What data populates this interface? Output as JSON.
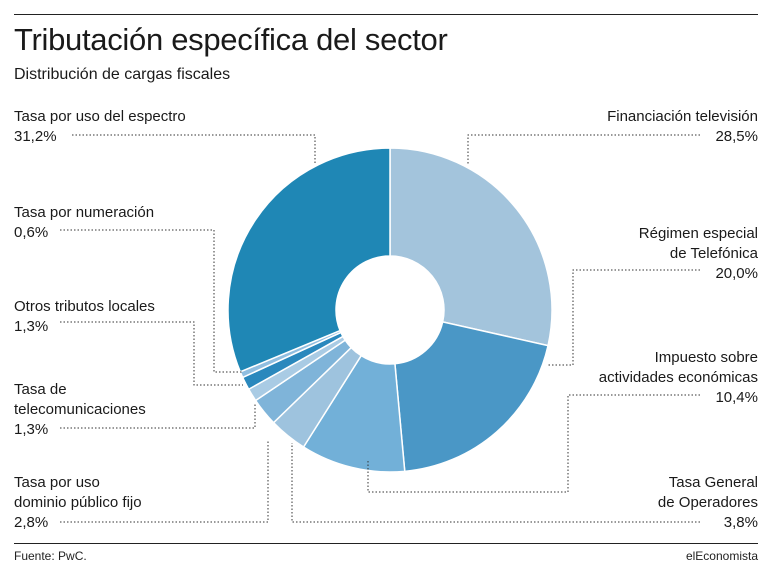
{
  "header": {
    "title": "Tributación específica del sector",
    "subtitle": "Distribución de cargas fiscales"
  },
  "footer": {
    "source": "Fuente: PwC.",
    "brand": "elEconomista"
  },
  "colors": {
    "financiacion": "#a3c4dc",
    "telefonica": "#4a97c6",
    "impuesto": "#72b0d8",
    "tasa_general": "#9ec3de",
    "dominio": "#7fb4d9",
    "telecom": "#a9cbe4",
    "otros": "#2a88bd",
    "numeracion": "#90bee0",
    "espectro": "#1f87b5",
    "leader": "#333333"
  },
  "chart_data": {
    "type": "pie",
    "donut": true,
    "title": "Tributación específica del sector",
    "subtitle": "Distribución de cargas fiscales",
    "slices": [
      {
        "key": "financiacion",
        "label": "Financiación televisión",
        "value": 28.5,
        "value_label": "28,5%"
      },
      {
        "key": "telefonica",
        "label": "Régimen especial de Telefónica",
        "value": 20.0,
        "value_label": "20,0%"
      },
      {
        "key": "impuesto",
        "label": "Impuesto sobre actividades económicas",
        "value": 10.4,
        "value_label": "10,4%"
      },
      {
        "key": "tasa_general",
        "label": "Tasa General de Operadores",
        "value": 3.8,
        "value_label": "3,8%"
      },
      {
        "key": "dominio",
        "label": "Tasa por uso dominio público fijo",
        "value": 2.8,
        "value_label": "2,8%"
      },
      {
        "key": "telecom",
        "label": "Tasa de telecomunicaciones",
        "value": 1.3,
        "value_label": "1,3%"
      },
      {
        "key": "otros",
        "label": "Otros tributos locales",
        "value": 1.3,
        "value_label": "1,3%"
      },
      {
        "key": "numeracion",
        "label": "Tasa por numeración",
        "value": 0.6,
        "value_label": "0,6%"
      },
      {
        "key": "espectro",
        "label": "Tasa por uso del espectro",
        "value": 31.2,
        "value_label": "31,2%"
      }
    ]
  },
  "labels": {
    "espectro": {
      "lines": [
        "Tasa por uso del espectro"
      ],
      "value": "31,2%"
    },
    "numeracion": {
      "lines": [
        "Tasa por numeración"
      ],
      "value": "0,6%"
    },
    "otros": {
      "lines": [
        "Otros tributos locales"
      ],
      "value": "1,3%"
    },
    "telecom": {
      "lines": [
        "Tasa de",
        "telecomunicaciones"
      ],
      "value": "1,3%"
    },
    "dominio": {
      "lines": [
        "Tasa por uso",
        "dominio público fijo"
      ],
      "value": "2,8%"
    },
    "financiacion": {
      "lines": [
        "Financiación televisión"
      ],
      "value": "28,5%"
    },
    "telefonica": {
      "lines": [
        "Régimen especial",
        "de Telefónica"
      ],
      "value": "20,0%"
    },
    "impuesto": {
      "lines": [
        "Impuesto sobre",
        "actividades económicas"
      ],
      "value": "10,4%"
    },
    "tasa_general": {
      "lines": [
        "Tasa General",
        "de Operadores"
      ],
      "value": "3,8%"
    }
  }
}
